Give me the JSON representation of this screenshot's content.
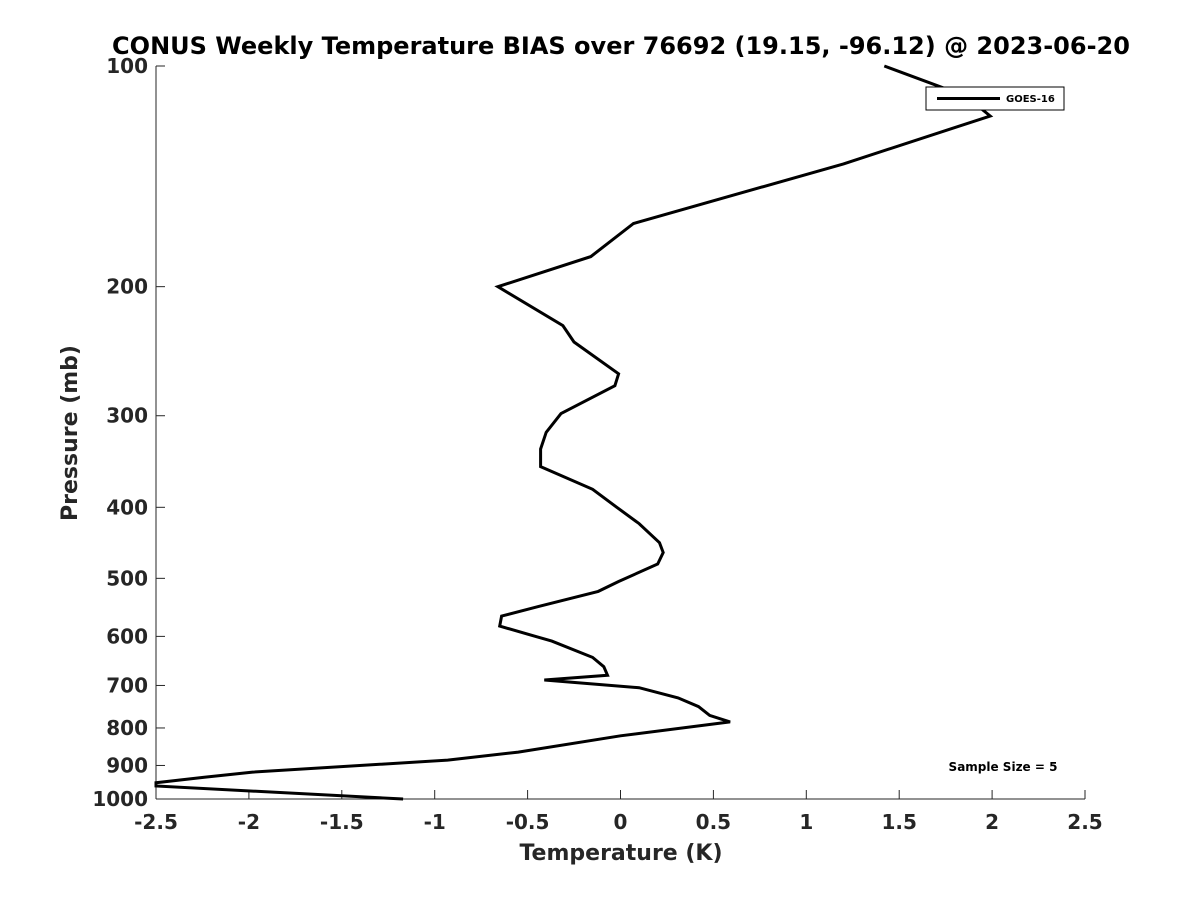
{
  "chart_data": {
    "type": "line",
    "title": "CONUS Weekly Temperature BIAS over 76692 (19.15, -96.12) @ 2023-06-20",
    "xlabel": "Temperature (K)",
    "ylabel": "Pressure (mb)",
    "xlim": [
      -2.5,
      2.5
    ],
    "ylim": [
      1000,
      100
    ],
    "yscale": "log",
    "y_reversed": true,
    "x_ticks": [
      "-2.5",
      "-2",
      "-1.5",
      "-1",
      "-0.5",
      "0",
      "0.5",
      "1",
      "1.5",
      "2",
      "2.5"
    ],
    "y_ticks": [
      "100",
      "200",
      "300",
      "400",
      "500",
      "600",
      "700",
      "800",
      "900",
      "1000"
    ],
    "legend": {
      "position": "top-right",
      "entries": [
        "GOES-16"
      ]
    },
    "annotation": "Sample Size = 5",
    "grid": false,
    "series": [
      {
        "name": "GOES-16",
        "color": "#000000",
        "x": [
          1.42,
          1.86,
          1.99,
          1.2,
          0.07,
          -0.16,
          -0.66,
          -0.31,
          -0.25,
          -0.01,
          -0.03,
          -0.32,
          -0.4,
          -0.43,
          -0.43,
          -0.15,
          -0.02,
          0.1,
          0.21,
          0.23,
          0.2,
          -0.01,
          -0.12,
          -0.44,
          -0.64,
          -0.65,
          -0.37,
          -0.15,
          -0.09,
          -0.07,
          -0.41,
          0.1,
          0.31,
          0.42,
          0.48,
          0.59,
          0.0,
          -0.55,
          -0.93,
          -1.98,
          -2.24,
          -2.5,
          -2.5,
          -1.17
        ],
        "y": [
          100,
          110,
          117,
          136,
          164,
          182,
          200,
          226,
          238,
          263,
          273,
          298,
          316,
          333,
          352,
          378,
          400,
          421,
          447,
          461,
          478,
          505,
          521,
          546,
          563,
          581,
          609,
          641,
          660,
          678,
          688,
          705,
          728,
          748,
          769,
          785,
          820,
          863,
          885,
          919,
          934,
          950,
          960,
          1000
        ]
      }
    ]
  }
}
